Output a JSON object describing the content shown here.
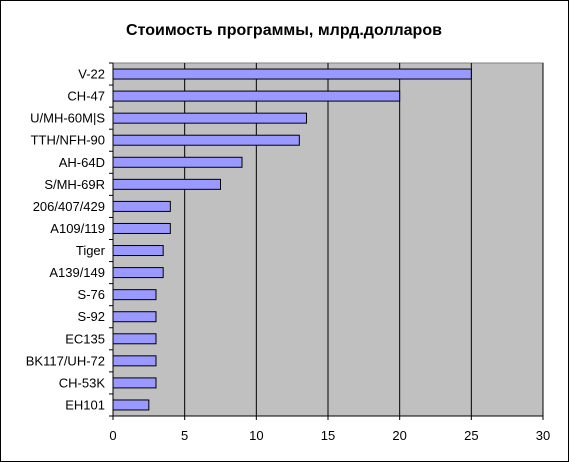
{
  "chart_data": {
    "type": "bar",
    "orientation": "horizontal",
    "title": "Стоимость программы, млрд.долларов",
    "categories": [
      "V-22",
      "CH-47",
      "U/MH-60M|S",
      "TTH/NFH-90",
      "AH-64D",
      "S/MH-69R",
      "206/407/429",
      "A109/119",
      "Tiger",
      "A139/149",
      "S-76",
      "S-92",
      "EC135",
      "BK117/UH-72",
      "CH-53K",
      "EH101"
    ],
    "values": [
      25,
      20,
      13.5,
      13,
      9,
      7.5,
      4,
      4,
      3.5,
      3.5,
      3,
      3,
      3,
      3,
      3,
      2.5
    ],
    "xlim": [
      0,
      30
    ],
    "xticks": [
      0,
      5,
      10,
      15,
      20,
      25,
      30
    ],
    "grid": true,
    "legend": "none",
    "colors": {
      "bar_fill": "#9999FF",
      "bar_stroke": "#000000",
      "plot_bg": "#C0C0C0",
      "gridline": "#000000"
    }
  }
}
